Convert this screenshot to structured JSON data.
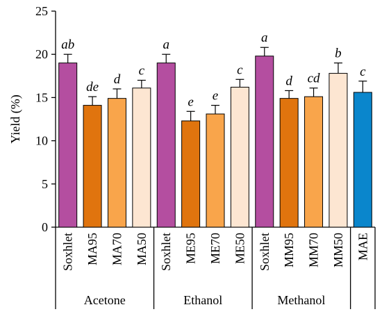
{
  "chart_data": {
    "type": "bar",
    "ylabel": "Yield (%)",
    "ylim": [
      0,
      25
    ],
    "yticks": [
      0,
      5,
      10,
      15,
      20,
      25
    ],
    "categories": [
      "Soxhlet",
      "MA95",
      "MA70",
      "MA50",
      "Soxhlet",
      "ME95",
      "ME70",
      "ME50",
      "Soxhlet",
      "MM95",
      "MM70",
      "MM50",
      "MAE"
    ],
    "values": [
      19.0,
      14.1,
      14.9,
      16.1,
      19.0,
      12.3,
      13.1,
      16.2,
      19.8,
      14.9,
      15.1,
      17.8,
      15.6
    ],
    "errors": [
      1.0,
      1.0,
      1.1,
      0.9,
      1.0,
      1.1,
      1.0,
      0.9,
      1.0,
      0.9,
      1.0,
      1.2,
      1.3
    ],
    "significance": [
      "ab",
      "de",
      "d",
      "c",
      "a",
      "e",
      "e",
      "c",
      "a",
      "d",
      "cd",
      "b",
      "c"
    ],
    "colors": [
      "#b44ea0",
      "#e0740e",
      "#f9a54b",
      "#fde6d2",
      "#b44ea0",
      "#e0740e",
      "#f9a54b",
      "#fde6d2",
      "#b44ea0",
      "#e0740e",
      "#f9a54b",
      "#fde6d2",
      "#0a86cc"
    ],
    "groups": [
      {
        "label": "Acetone",
        "start": 0,
        "end": 3
      },
      {
        "label": "Ethanol",
        "start": 4,
        "end": 7
      },
      {
        "label": "Methanol",
        "start": 8,
        "end": 11
      }
    ]
  }
}
